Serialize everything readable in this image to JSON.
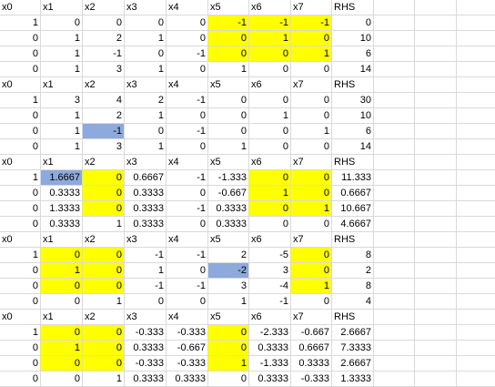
{
  "colors": {
    "yellow": "#ffff00",
    "blue": "#8ea9db",
    "grid": "#d9d9d9"
  },
  "blocks": [
    {
      "header": [
        "x0",
        "x1",
        "x2",
        "x3",
        "x4",
        "x5",
        "x6",
        "x7",
        "RHS"
      ],
      "rows": [
        [
          "1",
          "0",
          "0",
          "0",
          "0",
          "-1",
          "-1",
          "-1",
          "0"
        ],
        [
          "0",
          "1",
          "2",
          "1",
          "0",
          "0",
          "1",
          "0",
          "10"
        ],
        [
          "0",
          "1",
          "-1",
          "0",
          "-1",
          "0",
          "0",
          "1",
          "6"
        ],
        [
          "0",
          "1",
          "3",
          "1",
          "0",
          "1",
          "0",
          "0",
          "14"
        ]
      ],
      "highlights": [
        [
          1,
          5,
          "yellow"
        ],
        [
          1,
          6,
          "yellow"
        ],
        [
          1,
          7,
          "yellow"
        ],
        [
          2,
          5,
          "yellow"
        ],
        [
          2,
          6,
          "yellow"
        ],
        [
          2,
          7,
          "yellow"
        ],
        [
          3,
          5,
          "yellow"
        ],
        [
          3,
          6,
          "yellow"
        ],
        [
          3,
          7,
          "yellow"
        ]
      ]
    },
    {
      "header": [
        "x0",
        "x1",
        "x2",
        "x3",
        "x4",
        "x5",
        "x6",
        "x7",
        "RHS"
      ],
      "rows": [
        [
          "1",
          "3",
          "4",
          "2",
          "-1",
          "0",
          "0",
          "0",
          "30"
        ],
        [
          "0",
          "1",
          "2",
          "1",
          "0",
          "0",
          "1",
          "0",
          "10"
        ],
        [
          "0",
          "1",
          "-1",
          "0",
          "-1",
          "0",
          "0",
          "1",
          "6"
        ],
        [
          "0",
          "1",
          "3",
          "1",
          "0",
          "1",
          "0",
          "0",
          "14"
        ]
      ],
      "highlights": [
        [
          3,
          2,
          "blue"
        ]
      ]
    },
    {
      "header": [
        "x0",
        "x1",
        "x2",
        "x3",
        "x4",
        "x5",
        "x6",
        "x7",
        "RHS"
      ],
      "rows": [
        [
          "1",
          "1.6667",
          "0",
          "0.6667",
          "-1",
          "-1.333",
          "0",
          "0",
          "11.333"
        ],
        [
          "0",
          "0.3333",
          "0",
          "0.3333",
          "0",
          "-0.667",
          "1",
          "0",
          "0.6667"
        ],
        [
          "0",
          "1.3333",
          "0",
          "0.3333",
          "-1",
          "0.3333",
          "0",
          "1",
          "10.667"
        ],
        [
          "0",
          "0.3333",
          "1",
          "0.3333",
          "0",
          "0.3333",
          "0",
          "0",
          "4.6667"
        ]
      ],
      "highlights": [
        [
          1,
          1,
          "blue"
        ],
        [
          1,
          2,
          "yellow"
        ],
        [
          2,
          2,
          "yellow"
        ],
        [
          3,
          2,
          "yellow"
        ],
        [
          1,
          6,
          "yellow"
        ],
        [
          1,
          7,
          "yellow"
        ],
        [
          2,
          6,
          "yellow"
        ],
        [
          2,
          7,
          "yellow"
        ],
        [
          3,
          6,
          "yellow"
        ],
        [
          3,
          7,
          "yellow"
        ]
      ]
    },
    {
      "header": [
        "x0",
        "x1",
        "x2",
        "x3",
        "x4",
        "x5",
        "x6",
        "x7",
        "RHS"
      ],
      "rows": [
        [
          "1",
          "0",
          "0",
          "-1",
          "-1",
          "2",
          "-5",
          "0",
          "8"
        ],
        [
          "0",
          "1",
          "0",
          "1",
          "0",
          "-2",
          "3",
          "0",
          "2"
        ],
        [
          "0",
          "0",
          "0",
          "-1",
          "-1",
          "3",
          "-4",
          "1",
          "8"
        ],
        [
          "0",
          "0",
          "1",
          "0",
          "0",
          "1",
          "-1",
          "0",
          "4"
        ]
      ],
      "highlights": [
        [
          1,
          1,
          "yellow"
        ],
        [
          2,
          1,
          "yellow"
        ],
        [
          3,
          1,
          "yellow"
        ],
        [
          1,
          2,
          "yellow"
        ],
        [
          2,
          2,
          "yellow"
        ],
        [
          3,
          2,
          "yellow"
        ],
        [
          2,
          5,
          "blue"
        ],
        [
          1,
          7,
          "yellow"
        ],
        [
          2,
          7,
          "yellow"
        ],
        [
          3,
          7,
          "yellow"
        ]
      ]
    },
    {
      "header": [
        "x0",
        "x1",
        "x2",
        "x3",
        "x4",
        "x5",
        "x6",
        "x7",
        "RHS"
      ],
      "rows": [
        [
          "1",
          "0",
          "0",
          "-0.333",
          "-0.333",
          "0",
          "-2.333",
          "-0.667",
          "2.6667"
        ],
        [
          "0",
          "1",
          "0",
          "0.3333",
          "-0.667",
          "0",
          "0.3333",
          "0.6667",
          "7.3333"
        ],
        [
          "0",
          "0",
          "0",
          "-0.333",
          "-0.333",
          "1",
          "-1.333",
          "0.3333",
          "2.6667"
        ],
        [
          "0",
          "0",
          "1",
          "0.3333",
          "0.3333",
          "0",
          "0.3333",
          "-0.333",
          "1.3333"
        ]
      ],
      "highlights": [
        [
          1,
          1,
          "yellow"
        ],
        [
          2,
          1,
          "yellow"
        ],
        [
          3,
          1,
          "yellow"
        ],
        [
          1,
          2,
          "yellow"
        ],
        [
          2,
          2,
          "yellow"
        ],
        [
          3,
          2,
          "yellow"
        ],
        [
          1,
          5,
          "yellow"
        ],
        [
          2,
          5,
          "yellow"
        ],
        [
          3,
          5,
          "yellow"
        ]
      ]
    }
  ]
}
